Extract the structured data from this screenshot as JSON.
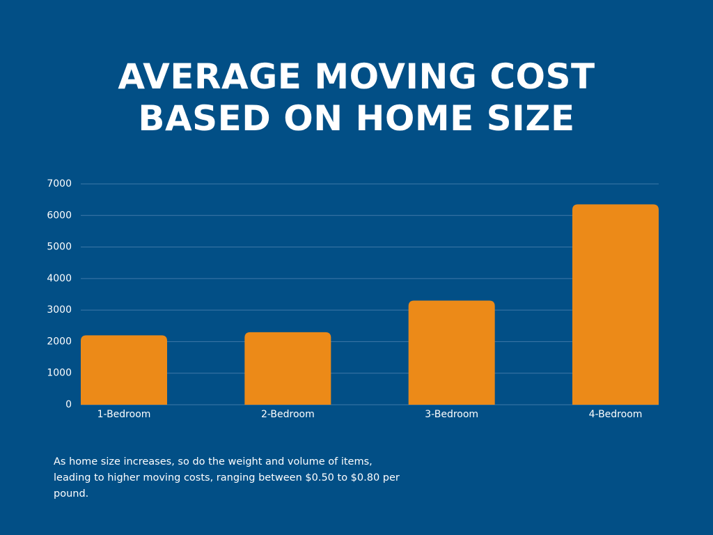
{
  "chart_data": {
    "type": "bar",
    "title": "AVERAGE MOVING COST BASED ON HOME SIZE",
    "categories": [
      "1-Bedroom",
      "2-Bedroom",
      "3-Bedroom",
      "4-Bedroom"
    ],
    "values": [
      2200,
      2300,
      3300,
      6350
    ],
    "color": "#ec8a18",
    "ylim": [
      0,
      7000
    ],
    "yticks": [
      0,
      1000,
      2000,
      3000,
      4000,
      5000,
      6000,
      7000
    ],
    "grid": true,
    "note": "As home size increases, so do the weight and volume of items, leading to higher moving costs, ranging between $0.50 to $0.80 per pound."
  }
}
